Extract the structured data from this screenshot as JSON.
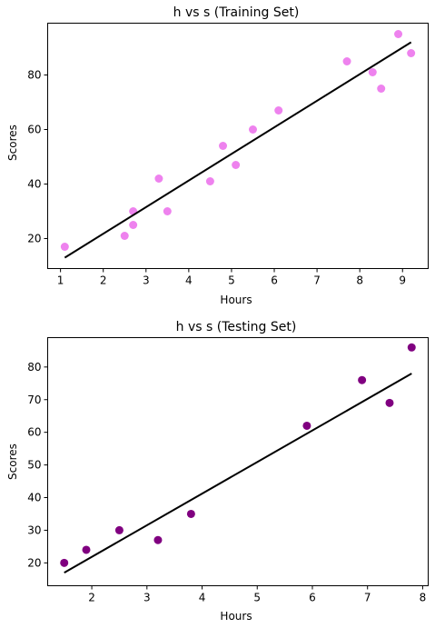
{
  "chart_data": [
    {
      "type": "scatter",
      "title": "h vs s (Training Set)",
      "xlabel": "Hours",
      "ylabel": "Scores",
      "xlim": [
        0.7,
        9.6
      ],
      "ylim": [
        9,
        99
      ],
      "xticks": [
        1,
        2,
        3,
        4,
        5,
        6,
        7,
        8,
        9
      ],
      "yticks": [
        20,
        40,
        60,
        80
      ],
      "grid": false,
      "points_color": "#ee82ee",
      "points": [
        {
          "x": 1.1,
          "y": 17
        },
        {
          "x": 2.5,
          "y": 21
        },
        {
          "x": 2.7,
          "y": 25
        },
        {
          "x": 2.7,
          "y": 30
        },
        {
          "x": 3.3,
          "y": 42
        },
        {
          "x": 3.5,
          "y": 30
        },
        {
          "x": 4.5,
          "y": 41
        },
        {
          "x": 4.8,
          "y": 54
        },
        {
          "x": 5.1,
          "y": 47
        },
        {
          "x": 5.5,
          "y": 60
        },
        {
          "x": 6.1,
          "y": 67
        },
        {
          "x": 7.7,
          "y": 85
        },
        {
          "x": 8.3,
          "y": 81
        },
        {
          "x": 8.5,
          "y": 75
        },
        {
          "x": 8.9,
          "y": 95
        },
        {
          "x": 9.2,
          "y": 88
        }
      ],
      "line_color": "#000000",
      "line": [
        {
          "x": 1.1,
          "y": 13
        },
        {
          "x": 9.2,
          "y": 92
        }
      ]
    },
    {
      "type": "scatter",
      "title": "h vs s (Testing Set)",
      "xlabel": "Hours",
      "ylabel": "Scores",
      "xlim": [
        1.2,
        8.1
      ],
      "ylim": [
        13,
        89
      ],
      "xticks": [
        2,
        3,
        4,
        5,
        6,
        7,
        8
      ],
      "yticks": [
        20,
        30,
        40,
        50,
        60,
        70,
        80
      ],
      "grid": false,
      "points_color": "#800080",
      "points": [
        {
          "x": 1.5,
          "y": 20
        },
        {
          "x": 1.9,
          "y": 24
        },
        {
          "x": 2.5,
          "y": 30
        },
        {
          "x": 3.2,
          "y": 27
        },
        {
          "x": 3.8,
          "y": 35
        },
        {
          "x": 5.9,
          "y": 62
        },
        {
          "x": 6.9,
          "y": 76
        },
        {
          "x": 7.4,
          "y": 69
        },
        {
          "x": 7.8,
          "y": 86
        }
      ],
      "line_color": "#000000",
      "line": [
        {
          "x": 1.5,
          "y": 17
        },
        {
          "x": 7.8,
          "y": 78
        }
      ]
    }
  ]
}
